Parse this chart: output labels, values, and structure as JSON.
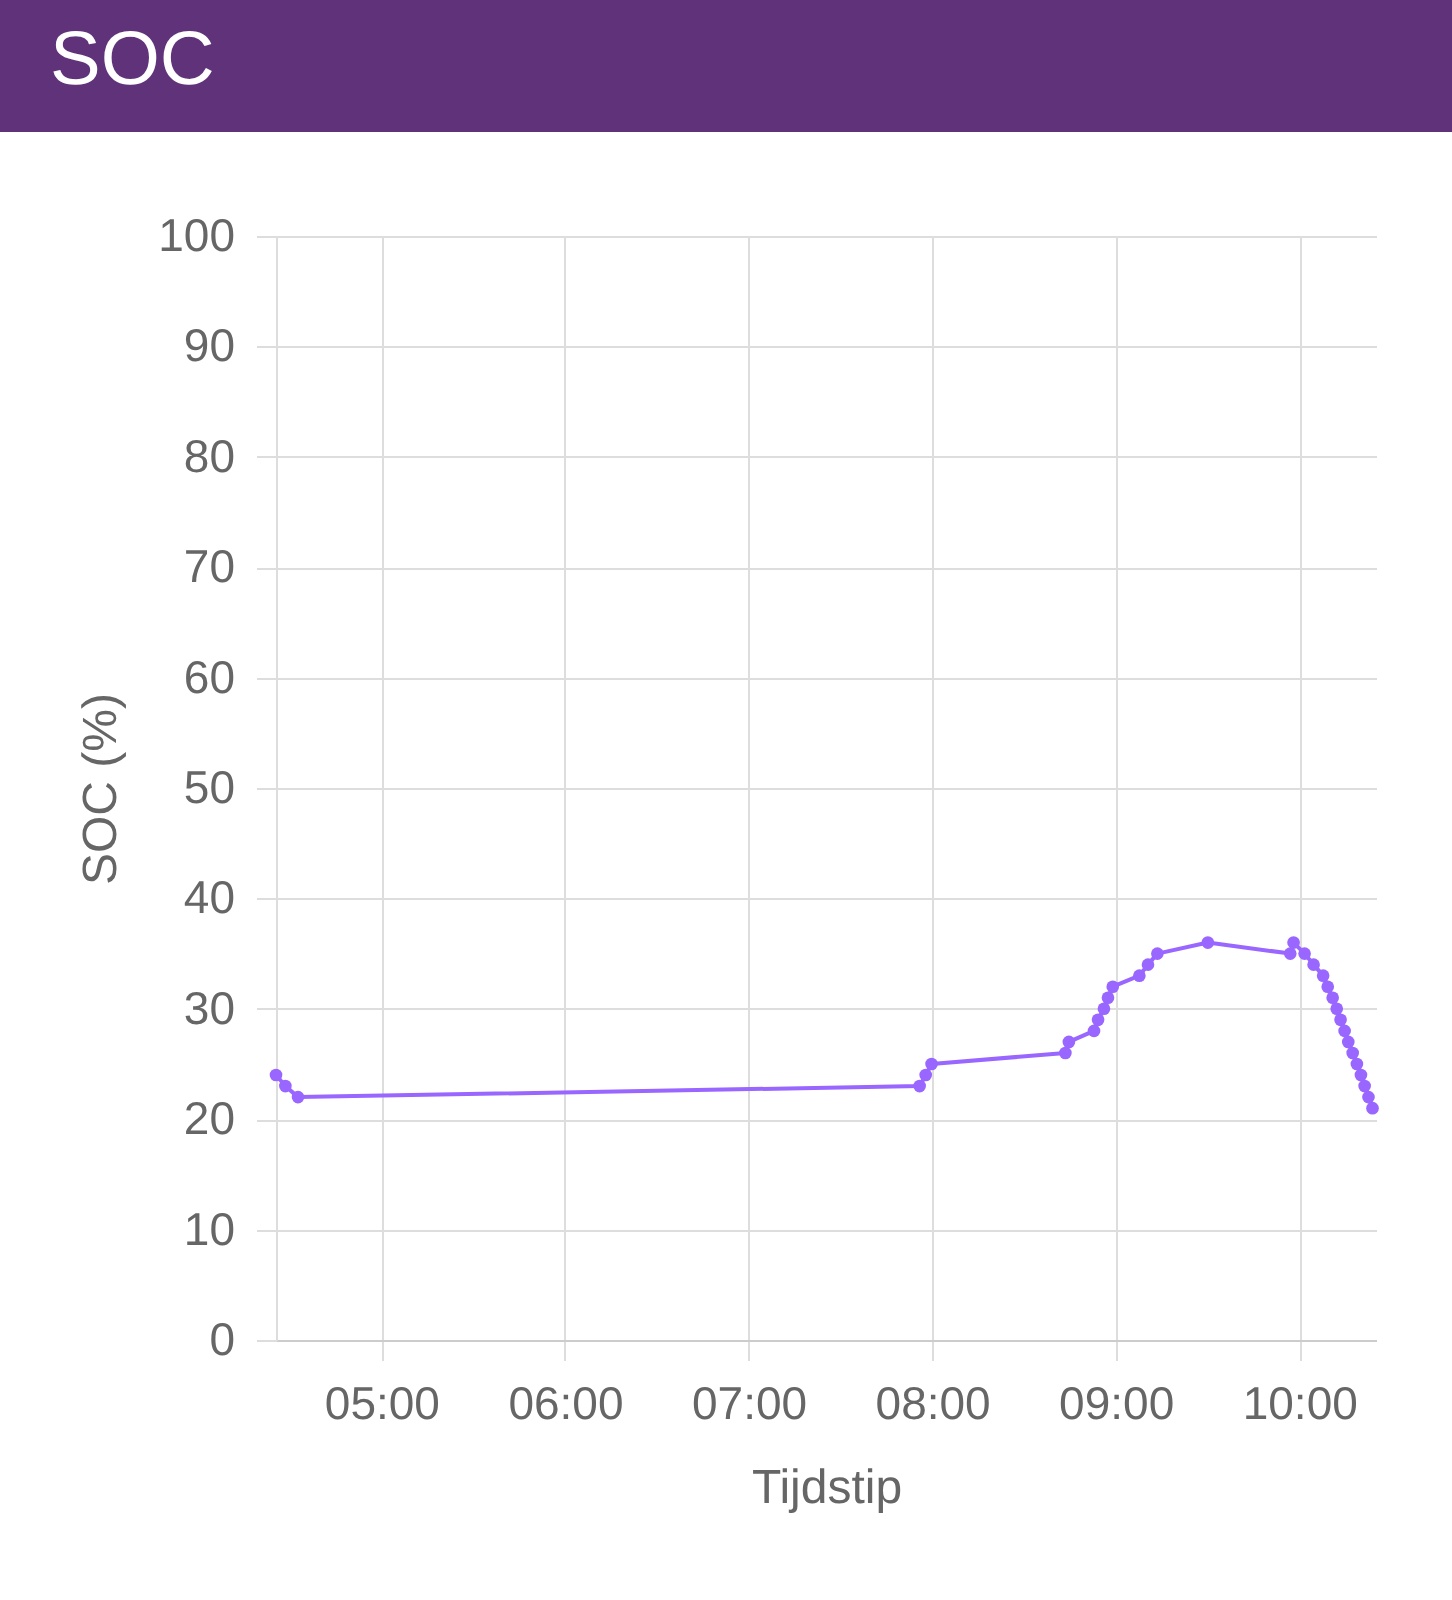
{
  "chart_data": {
    "type": "line",
    "title": "SOC",
    "xlabel": "Tijdstip",
    "ylabel": "SOC (%)",
    "x": [
      4.426,
      4.477,
      4.546,
      7.932,
      7.965,
      7.997,
      8.726,
      8.745,
      8.882,
      8.904,
      8.936,
      8.958,
      8.984,
      9.129,
      9.176,
      9.227,
      9.502,
      9.951,
      9.969,
      10.029,
      10.078,
      10.13,
      10.155,
      10.182,
      10.204,
      10.225,
      10.247,
      10.267,
      10.291,
      10.314,
      10.336,
      10.356,
      10.377,
      10.399
    ],
    "values": [
      24,
      23,
      22,
      23,
      24,
      25,
      26,
      27,
      28,
      29,
      30,
      31,
      32,
      33,
      34,
      35,
      36,
      35,
      36,
      35,
      34,
      33,
      32,
      31,
      30,
      29,
      28,
      27,
      26,
      25,
      24,
      23,
      22,
      21
    ],
    "color": "#9966ff",
    "xlim": [
      4.426,
      10.418
    ],
    "xticks": [
      {
        "value": 5,
        "label": "05:00"
      },
      {
        "value": 6,
        "label": "06:00"
      },
      {
        "value": 7,
        "label": "07:00"
      },
      {
        "value": 8,
        "label": "08:00"
      },
      {
        "value": 9,
        "label": "09:00"
      },
      {
        "value": 10,
        "label": "10:00"
      }
    ],
    "ylim": [
      0,
      100
    ],
    "yticks": [
      0,
      10,
      20,
      30,
      40,
      50,
      60,
      70,
      80,
      90,
      100
    ],
    "grid": true,
    "marker": "circle"
  }
}
